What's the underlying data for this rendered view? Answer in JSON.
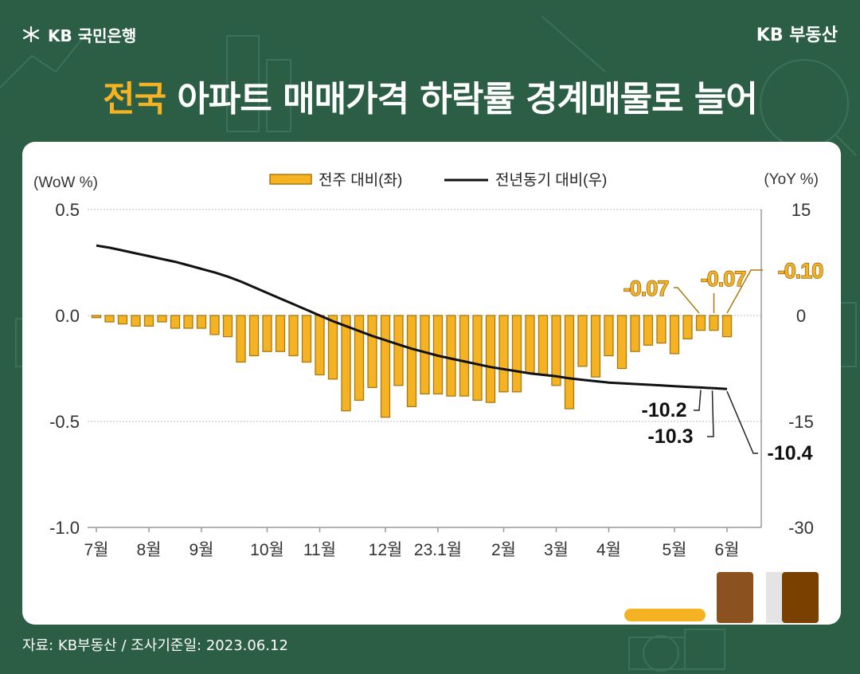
{
  "header": {
    "logo_text": "KB 국민은행",
    "brand_right": "KB 부동산",
    "title_highlight": "전국",
    "title_rest": " 아파트 매매가격 하락률 경계매물로 늘어"
  },
  "footer": {
    "source": "자료: KB부동산 / 조사기준일: 2023.06.12"
  },
  "colors": {
    "background": "#2b5e45",
    "bar_fill": "#f5b324",
    "bar_stroke": "#a87a10",
    "line": "#111111",
    "highlight": "#f5b324"
  },
  "chart_data": {
    "type": "bar",
    "left_axis_unit": "(WoW %)",
    "right_axis_unit": "(YoY %)",
    "legend": [
      "전주 대비(좌)",
      "전년동기 대비(우)"
    ],
    "left_ticks": [
      "0.5",
      "0.0",
      "-0.5",
      "-1.0"
    ],
    "right_ticks": [
      "15",
      "0",
      "-15",
      "-30"
    ],
    "ylim_left": [
      -1.0,
      0.5
    ],
    "ylim_right": [
      -30,
      15
    ],
    "x_labels": [
      "7월",
      "8월",
      "9월",
      "10월",
      "11월",
      "12월",
      "23.1월",
      "2월",
      "3월",
      "4월",
      "5월",
      "6월"
    ],
    "series": [
      {
        "name": "전주 대비(좌)",
        "axis": "left",
        "values": [
          -0.01,
          -0.03,
          -0.04,
          -0.05,
          -0.05,
          -0.03,
          -0.06,
          -0.06,
          -0.06,
          -0.09,
          -0.1,
          -0.22,
          -0.19,
          -0.17,
          -0.17,
          -0.19,
          -0.22,
          -0.28,
          -0.3,
          -0.45,
          -0.4,
          -0.34,
          -0.48,
          -0.33,
          -0.43,
          -0.37,
          -0.37,
          -0.38,
          -0.38,
          -0.4,
          -0.41,
          -0.36,
          -0.36,
          -0.27,
          -0.28,
          -0.33,
          -0.44,
          -0.24,
          -0.29,
          -0.19,
          -0.25,
          -0.17,
          -0.14,
          -0.13,
          -0.18,
          -0.11,
          -0.07,
          -0.07,
          -0.1
        ]
      },
      {
        "name": "전년동기 대비(우)",
        "axis": "right",
        "values": [
          9.9,
          9.6,
          9.2,
          8.8,
          8.4,
          8.0,
          7.6,
          7.1,
          6.6,
          6.1,
          5.5,
          4.8,
          4.0,
          3.2,
          2.4,
          1.6,
          0.8,
          0.0,
          -0.8,
          -1.5,
          -2.2,
          -2.9,
          -3.5,
          -4.1,
          -4.7,
          -5.2,
          -5.7,
          -6.1,
          -6.5,
          -6.9,
          -7.3,
          -7.6,
          -7.9,
          -8.2,
          -8.4,
          -8.6,
          -8.9,
          -9.1,
          -9.3,
          -9.5,
          -9.6,
          -9.7,
          -9.8,
          -9.9,
          -10.0,
          -10.1,
          -10.2,
          -10.3,
          -10.4
        ]
      }
    ],
    "bar_annotations": [
      "-0.07",
      "-0.07",
      "-0.10"
    ],
    "line_annotations": [
      "-10.2",
      "-10.3",
      "-10.4"
    ]
  }
}
